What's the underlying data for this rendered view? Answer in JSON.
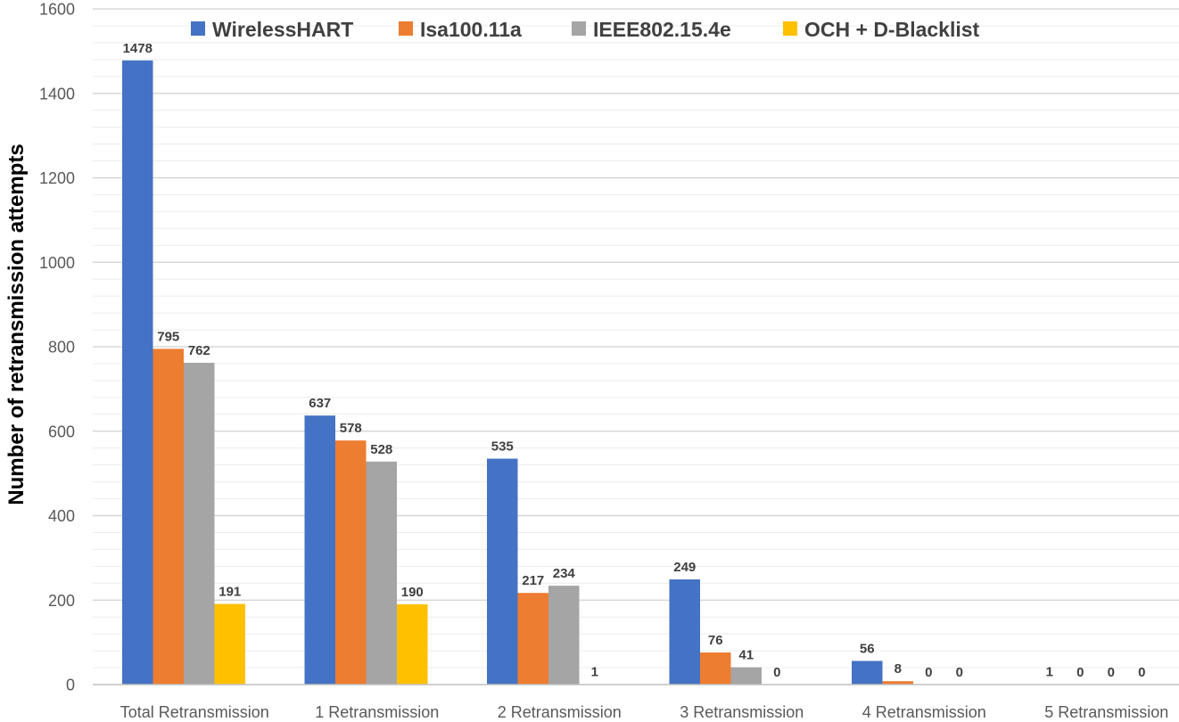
{
  "chart_data": {
    "type": "bar",
    "title": "",
    "xlabel": "",
    "ylabel": "Number of retransmission attempts",
    "ylim": [
      0,
      1600
    ],
    "ytick_step": 200,
    "minor_grid_step": 40,
    "grid": true,
    "legend_position": "top",
    "categories": [
      "Total Retransmission",
      "1  Retransmission",
      "2  Retransmission",
      "3  Retransmission",
      "4  Retransmission",
      "5  Retransmission"
    ],
    "series": [
      {
        "name": "WirelessHART",
        "color": "#4472C4",
        "values": [
          1478,
          637,
          535,
          249,
          56,
          1
        ]
      },
      {
        "name": "Isa100.11a",
        "color": "#ED7D31",
        "values": [
          795,
          578,
          217,
          76,
          8,
          0
        ]
      },
      {
        "name": "IEEE802.15.4e",
        "color": "#A5A5A5",
        "values": [
          762,
          528,
          234,
          41,
          0,
          0
        ]
      },
      {
        "name": "OCH + D-Blacklist",
        "color": "#FFC000",
        "values": [
          191,
          190,
          1,
          0,
          0,
          0
        ]
      }
    ]
  }
}
